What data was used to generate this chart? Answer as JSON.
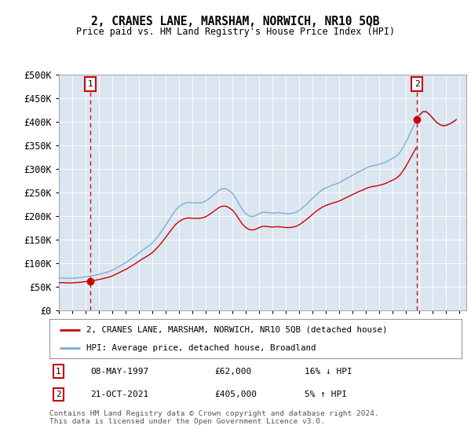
{
  "title": "2, CRANES LANE, MARSHAM, NORWICH, NR10 5QB",
  "subtitle": "Price paid vs. HM Land Registry's House Price Index (HPI)",
  "legend_line1": "2, CRANES LANE, MARSHAM, NORWICH, NR10 5QB (detached house)",
  "legend_line2": "HPI: Average price, detached house, Broadland",
  "sale1_date": "08-MAY-1997",
  "sale1_price": 62000,
  "sale1_hpi_pct": "16% ↓ HPI",
  "sale2_date": "21-OCT-2021",
  "sale2_price": 405000,
  "sale2_hpi_pct": "5% ↑ HPI",
  "footnote": "Contains HM Land Registry data © Crown copyright and database right 2024.\nThis data is licensed under the Open Government Licence v3.0.",
  "hpi_color": "#7bafd4",
  "sale_color": "#cc0000",
  "marker_color": "#cc0000",
  "bg_color": "#dce6f1",
  "ylim": [
    0,
    500000
  ],
  "yticks": [
    0,
    50000,
    100000,
    150000,
    200000,
    250000,
    300000,
    350000,
    400000,
    450000,
    500000
  ],
  "ytick_labels": [
    "£0",
    "£50K",
    "£100K",
    "£150K",
    "£200K",
    "£250K",
    "£300K",
    "£350K",
    "£400K",
    "£450K",
    "£500K"
  ],
  "xlim_start": 1995.0,
  "xlim_end": 2025.5,
  "xtick_years": [
    1995,
    1996,
    1997,
    1998,
    1999,
    2000,
    2001,
    2002,
    2003,
    2004,
    2005,
    2006,
    2007,
    2008,
    2009,
    2010,
    2011,
    2012,
    2013,
    2014,
    2015,
    2016,
    2017,
    2018,
    2019,
    2020,
    2021,
    2022,
    2023,
    2024,
    2025
  ],
  "hpi_x": [
    1995.0,
    1995.25,
    1995.5,
    1995.75,
    1996.0,
    1996.25,
    1996.5,
    1996.75,
    1997.0,
    1997.25,
    1997.5,
    1997.75,
    1998.0,
    1998.25,
    1998.5,
    1998.75,
    1999.0,
    1999.25,
    1999.5,
    1999.75,
    2000.0,
    2000.25,
    2000.5,
    2000.75,
    2001.0,
    2001.25,
    2001.5,
    2001.75,
    2002.0,
    2002.25,
    2002.5,
    2002.75,
    2003.0,
    2003.25,
    2003.5,
    2003.75,
    2004.0,
    2004.25,
    2004.5,
    2004.75,
    2005.0,
    2005.25,
    2005.5,
    2005.75,
    2006.0,
    2006.25,
    2006.5,
    2006.75,
    2007.0,
    2007.25,
    2007.5,
    2007.75,
    2008.0,
    2008.25,
    2008.5,
    2008.75,
    2009.0,
    2009.25,
    2009.5,
    2009.75,
    2010.0,
    2010.25,
    2010.5,
    2010.75,
    2011.0,
    2011.25,
    2011.5,
    2011.75,
    2012.0,
    2012.25,
    2012.5,
    2012.75,
    2013.0,
    2013.25,
    2013.5,
    2013.75,
    2014.0,
    2014.25,
    2014.5,
    2014.75,
    2015.0,
    2015.25,
    2015.5,
    2015.75,
    2016.0,
    2016.25,
    2016.5,
    2016.75,
    2017.0,
    2017.25,
    2017.5,
    2017.75,
    2018.0,
    2018.25,
    2018.5,
    2018.75,
    2019.0,
    2019.25,
    2019.5,
    2019.75,
    2020.0,
    2020.25,
    2020.5,
    2020.75,
    2021.0,
    2021.25,
    2021.5,
    2021.75,
    2022.0,
    2022.25,
    2022.5,
    2022.75,
    2023.0,
    2023.25,
    2023.5,
    2023.75,
    2024.0,
    2024.25,
    2024.5,
    2024.75
  ],
  "hpi_y": [
    68000,
    68500,
    68000,
    67500,
    68000,
    68500,
    69000,
    70000,
    71000,
    72000,
    73000,
    74500,
    76000,
    78000,
    80000,
    82000,
    85000,
    89000,
    93000,
    97000,
    101000,
    106000,
    111000,
    116000,
    122000,
    127000,
    132000,
    137000,
    143000,
    151000,
    160000,
    170000,
    181000,
    192000,
    203000,
    213000,
    220000,
    225000,
    228000,
    229000,
    228000,
    228000,
    228000,
    229000,
    232000,
    237000,
    243000,
    249000,
    255000,
    258000,
    258000,
    254000,
    248000,
    238000,
    225000,
    213000,
    205000,
    200000,
    199000,
    201000,
    205000,
    208000,
    208000,
    207000,
    206000,
    207000,
    207000,
    206000,
    205000,
    205000,
    206000,
    208000,
    212000,
    218000,
    224000,
    231000,
    238000,
    245000,
    251000,
    256000,
    260000,
    263000,
    266000,
    268000,
    271000,
    275000,
    279000,
    283000,
    287000,
    291000,
    295000,
    298000,
    302000,
    305000,
    307000,
    308000,
    310000,
    312000,
    315000,
    319000,
    323000,
    327000,
    334000,
    345000,
    358000,
    373000,
    388000,
    403000,
    415000,
    422000,
    422000,
    416000,
    408000,
    400000,
    395000,
    392000,
    393000,
    396000,
    400000,
    405000
  ],
  "sale1_x": 1997.35,
  "sale2_x": 2021.8
}
